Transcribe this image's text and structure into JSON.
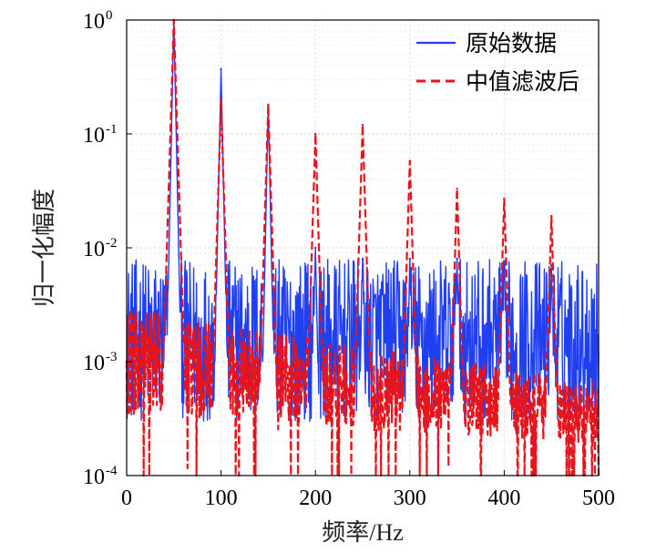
{
  "chart_data": {
    "type": "line",
    "xlabel": "频率/Hz",
    "ylabel": "归一化幅度",
    "xlim": [
      0,
      500
    ],
    "ylim": [
      0.0001,
      1
    ],
    "yscale": "log",
    "grid": true,
    "legend_position": "top-right",
    "x_ticks": [
      "0",
      "100",
      "200",
      "300",
      "400",
      "500"
    ],
    "y_ticks": [
      {
        "base": "10",
        "exp": "-4",
        "value": 0.0001
      },
      {
        "base": "10",
        "exp": "-3",
        "value": 0.001
      },
      {
        "base": "10",
        "exp": "-2",
        "value": 0.01
      },
      {
        "base": "10",
        "exp": "-1",
        "value": 0.1
      },
      {
        "base": "10",
        "exp": "0",
        "value": 1
      }
    ],
    "series": [
      {
        "name": "原始数据",
        "color": "#1f3ff0",
        "style": "solid",
        "noise_floor_range": [
          0.0003,
          0.008
        ],
        "peaks": [
          {
            "x": 50,
            "y": 1.0
          },
          {
            "x": 100,
            "y": 0.37
          },
          {
            "x": 150,
            "y": 0.18
          },
          {
            "x": 200,
            "y": 0.01
          },
          {
            "x": 250,
            "y": 0.008
          },
          {
            "x": 300,
            "y": 0.008
          },
          {
            "x": 350,
            "y": 0.008
          },
          {
            "x": 400,
            "y": 0.007
          },
          {
            "x": 450,
            "y": 0.007
          }
        ]
      },
      {
        "name": "中值滤波后",
        "color": "#e8141c",
        "style": "dashed",
        "noise_floor_range": [
          0.0001,
          0.003
        ],
        "peaks": [
          {
            "x": 50,
            "y": 1.0
          },
          {
            "x": 100,
            "y": 0.2
          },
          {
            "x": 150,
            "y": 0.18
          },
          {
            "x": 200,
            "y": 0.1
          },
          {
            "x": 250,
            "y": 0.12
          },
          {
            "x": 300,
            "y": 0.058
          },
          {
            "x": 350,
            "y": 0.033
          },
          {
            "x": 400,
            "y": 0.027
          },
          {
            "x": 450,
            "y": 0.019
          }
        ]
      }
    ]
  }
}
